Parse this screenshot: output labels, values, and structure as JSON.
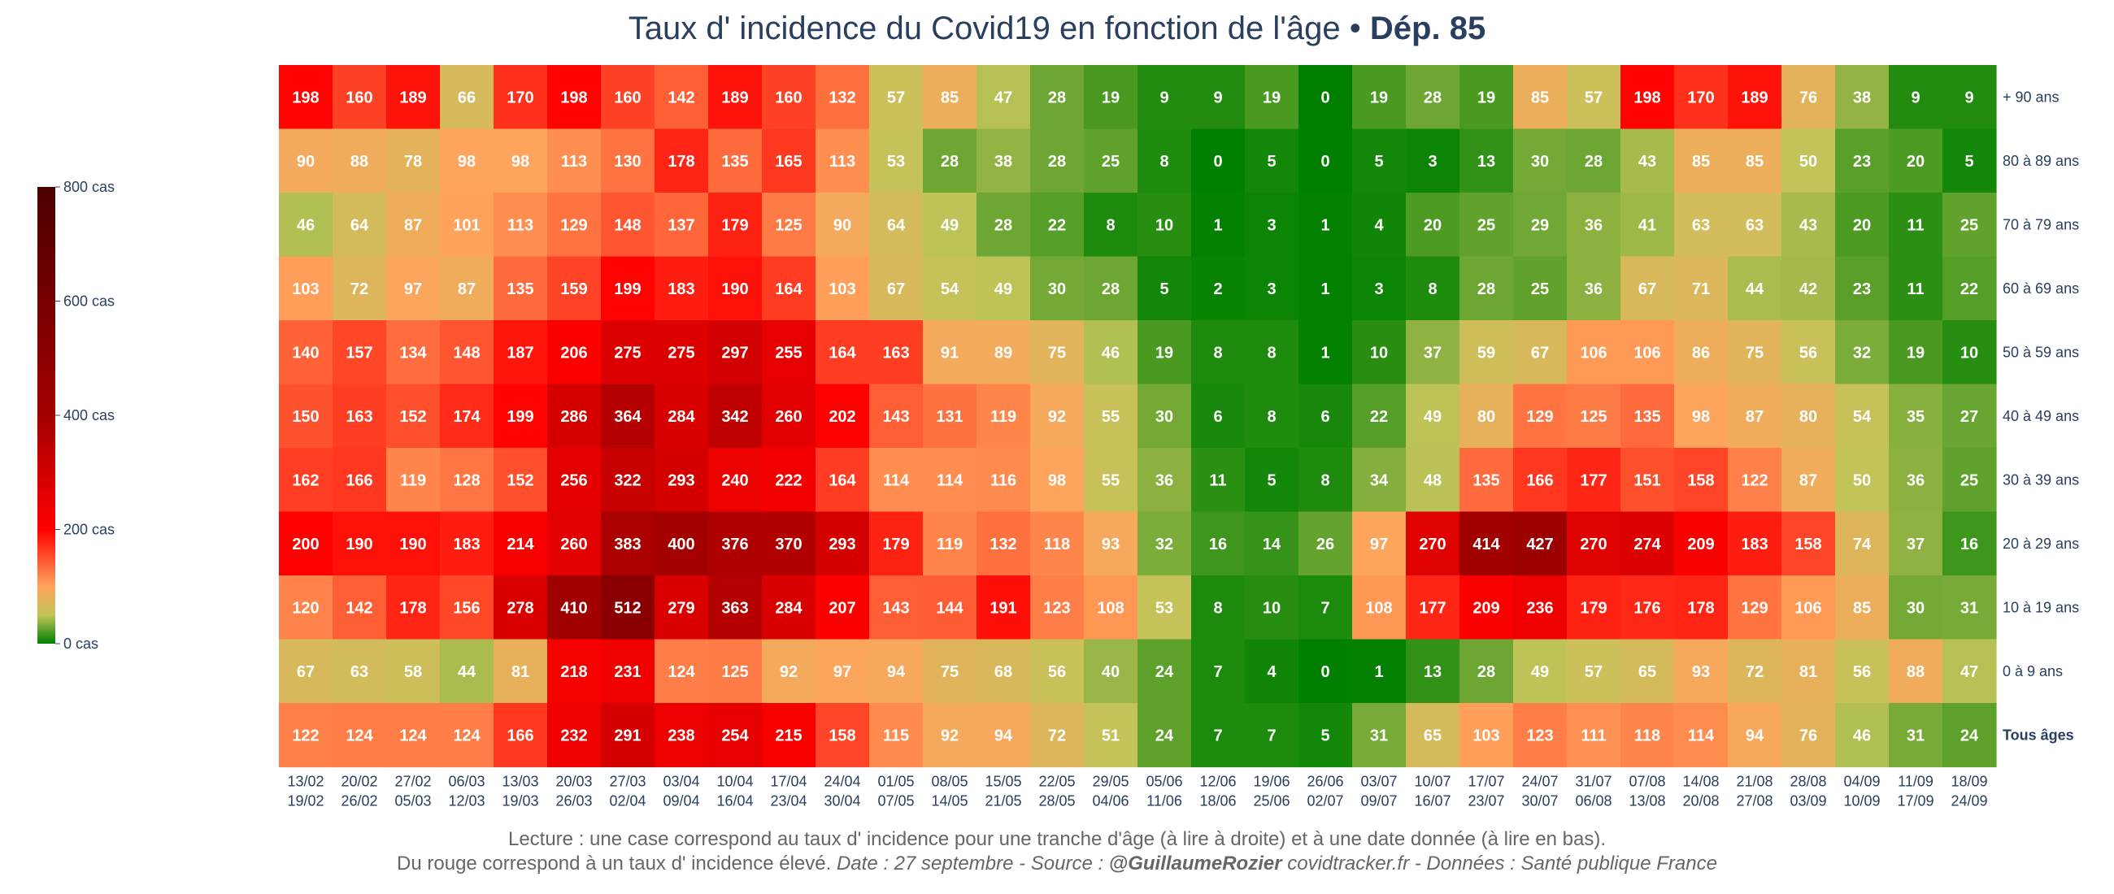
{
  "chart_data": {
    "type": "heatmap",
    "title": "Taux d' incidence du Covid19 en fonction de l'âge",
    "title_separator": " • ",
    "title_emphasis": "Dép. 85",
    "rows": [
      "+ 90 ans",
      "80 à 89 ans",
      "70 à 79 ans",
      "60 à 69 ans",
      "50 à 59 ans",
      "40 à 49 ans",
      "30 à 39 ans",
      "20 à 29 ans",
      "10 à 19 ans",
      "0 à 9 ans",
      "Tous âges"
    ],
    "columns": [
      {
        "start": "13/02",
        "end": "19/02"
      },
      {
        "start": "20/02",
        "end": "26/02"
      },
      {
        "start": "27/02",
        "end": "05/03"
      },
      {
        "start": "06/03",
        "end": "12/03"
      },
      {
        "start": "13/03",
        "end": "19/03"
      },
      {
        "start": "20/03",
        "end": "26/03"
      },
      {
        "start": "27/03",
        "end": "02/04"
      },
      {
        "start": "03/04",
        "end": "09/04"
      },
      {
        "start": "10/04",
        "end": "16/04"
      },
      {
        "start": "17/04",
        "end": "23/04"
      },
      {
        "start": "24/04",
        "end": "30/04"
      },
      {
        "start": "01/05",
        "end": "07/05"
      },
      {
        "start": "08/05",
        "end": "14/05"
      },
      {
        "start": "15/05",
        "end": "21/05"
      },
      {
        "start": "22/05",
        "end": "28/05"
      },
      {
        "start": "29/05",
        "end": "04/06"
      },
      {
        "start": "05/06",
        "end": "11/06"
      },
      {
        "start": "12/06",
        "end": "18/06"
      },
      {
        "start": "19/06",
        "end": "25/06"
      },
      {
        "start": "26/06",
        "end": "02/07"
      },
      {
        "start": "03/07",
        "end": "09/07"
      },
      {
        "start": "10/07",
        "end": "16/07"
      },
      {
        "start": "17/07",
        "end": "23/07"
      },
      {
        "start": "24/07",
        "end": "30/07"
      },
      {
        "start": "31/07",
        "end": "06/08"
      },
      {
        "start": "07/08",
        "end": "13/08"
      },
      {
        "start": "14/08",
        "end": "20/08"
      },
      {
        "start": "21/08",
        "end": "27/08"
      },
      {
        "start": "28/08",
        "end": "03/09"
      },
      {
        "start": "04/09",
        "end": "10/09"
      },
      {
        "start": "11/09",
        "end": "17/09"
      },
      {
        "start": "18/09",
        "end": "24/09"
      }
    ],
    "values": [
      [
        198,
        160,
        189,
        66,
        170,
        198,
        160,
        142,
        189,
        160,
        132,
        57,
        85,
        47,
        28,
        19,
        9,
        9,
        19,
        0,
        19,
        28,
        19,
        85,
        57,
        198,
        170,
        189,
        76,
        38,
        9,
        9
      ],
      [
        90,
        88,
        78,
        98,
        98,
        113,
        130,
        178,
        135,
        165,
        113,
        53,
        28,
        38,
        28,
        25,
        8,
        0,
        5,
        0,
        5,
        3,
        13,
        30,
        28,
        43,
        85,
        85,
        50,
        23,
        20,
        5
      ],
      [
        46,
        64,
        87,
        101,
        113,
        129,
        148,
        137,
        179,
        125,
        90,
        64,
        49,
        28,
        22,
        8,
        10,
        1,
        3,
        1,
        4,
        20,
        25,
        29,
        36,
        41,
        63,
        63,
        43,
        20,
        11,
        25
      ],
      [
        103,
        72,
        97,
        87,
        135,
        159,
        199,
        183,
        190,
        164,
        103,
        67,
        54,
        49,
        30,
        28,
        5,
        2,
        3,
        1,
        3,
        8,
        28,
        25,
        36,
        67,
        71,
        44,
        42,
        23,
        11,
        22
      ],
      [
        140,
        157,
        134,
        148,
        187,
        206,
        275,
        275,
        297,
        255,
        164,
        163,
        91,
        89,
        75,
        46,
        19,
        8,
        8,
        1,
        10,
        37,
        59,
        67,
        106,
        106,
        86,
        75,
        56,
        32,
        19,
        10
      ],
      [
        150,
        163,
        152,
        174,
        199,
        286,
        364,
        284,
        342,
        260,
        202,
        143,
        131,
        119,
        92,
        55,
        30,
        6,
        8,
        6,
        22,
        49,
        80,
        129,
        125,
        135,
        98,
        87,
        80,
        54,
        35,
        27
      ],
      [
        162,
        166,
        119,
        128,
        152,
        256,
        322,
        293,
        240,
        222,
        164,
        114,
        114,
        116,
        98,
        55,
        36,
        11,
        5,
        8,
        34,
        48,
        135,
        166,
        177,
        151,
        158,
        122,
        87,
        50,
        36,
        25
      ],
      [
        200,
        190,
        190,
        183,
        214,
        260,
        383,
        400,
        376,
        370,
        293,
        179,
        119,
        132,
        118,
        93,
        32,
        16,
        14,
        26,
        97,
        270,
        414,
        427,
        270,
        274,
        209,
        183,
        158,
        74,
        37,
        16
      ],
      [
        120,
        142,
        178,
        156,
        278,
        410,
        512,
        279,
        363,
        284,
        207,
        143,
        144,
        191,
        123,
        108,
        53,
        8,
        10,
        7,
        108,
        177,
        209,
        236,
        179,
        176,
        178,
        129,
        106,
        85,
        30,
        31
      ],
      [
        67,
        63,
        58,
        44,
        81,
        218,
        231,
        124,
        125,
        92,
        97,
        94,
        75,
        68,
        56,
        40,
        24,
        7,
        4,
        0,
        1,
        13,
        28,
        49,
        57,
        65,
        93,
        72,
        81,
        56,
        88,
        47
      ],
      [
        122,
        124,
        124,
        124,
        166,
        232,
        291,
        238,
        254,
        215,
        158,
        115,
        92,
        94,
        72,
        51,
        24,
        7,
        7,
        5,
        31,
        65,
        103,
        123,
        111,
        118,
        114,
        94,
        76,
        46,
        31,
        24
      ]
    ],
    "colorscale": [
      {
        "v": 0,
        "color": "#008000"
      },
      {
        "v": 50,
        "color": "#c2c45a"
      },
      {
        "v": 100,
        "color": "#ffa45c"
      },
      {
        "v": 200,
        "color": "#ff0000"
      },
      {
        "v": 400,
        "color": "#a30000"
      },
      {
        "v": 800,
        "color": "#4a0000"
      }
    ],
    "zrange": [
      0,
      800
    ],
    "colorbar": {
      "ticks": [
        {
          "v": 0,
          "label": "0 cas"
        },
        {
          "v": 200,
          "label": "200 cas"
        },
        {
          "v": 400,
          "label": "400 cas"
        },
        {
          "v": 600,
          "label": "600 cas"
        },
        {
          "v": 800,
          "label": "800 cas"
        }
      ]
    },
    "highlight_row": "Tous âges"
  },
  "footer": {
    "line1": "Lecture : une case correspond au taux d' incidence pour une tranche d'âge (à lire à droite) et à une date donnée (à lire en bas).",
    "line2_normal": "Du rouge correspond à un taux d' incidence élevé.  ",
    "line2_italic1": "Date : 27 septembre - Source : ",
    "line2_bold": "@GuillaumeRozier",
    "line2_italic2": " covidtracker.fr - Données : Santé publique France"
  }
}
